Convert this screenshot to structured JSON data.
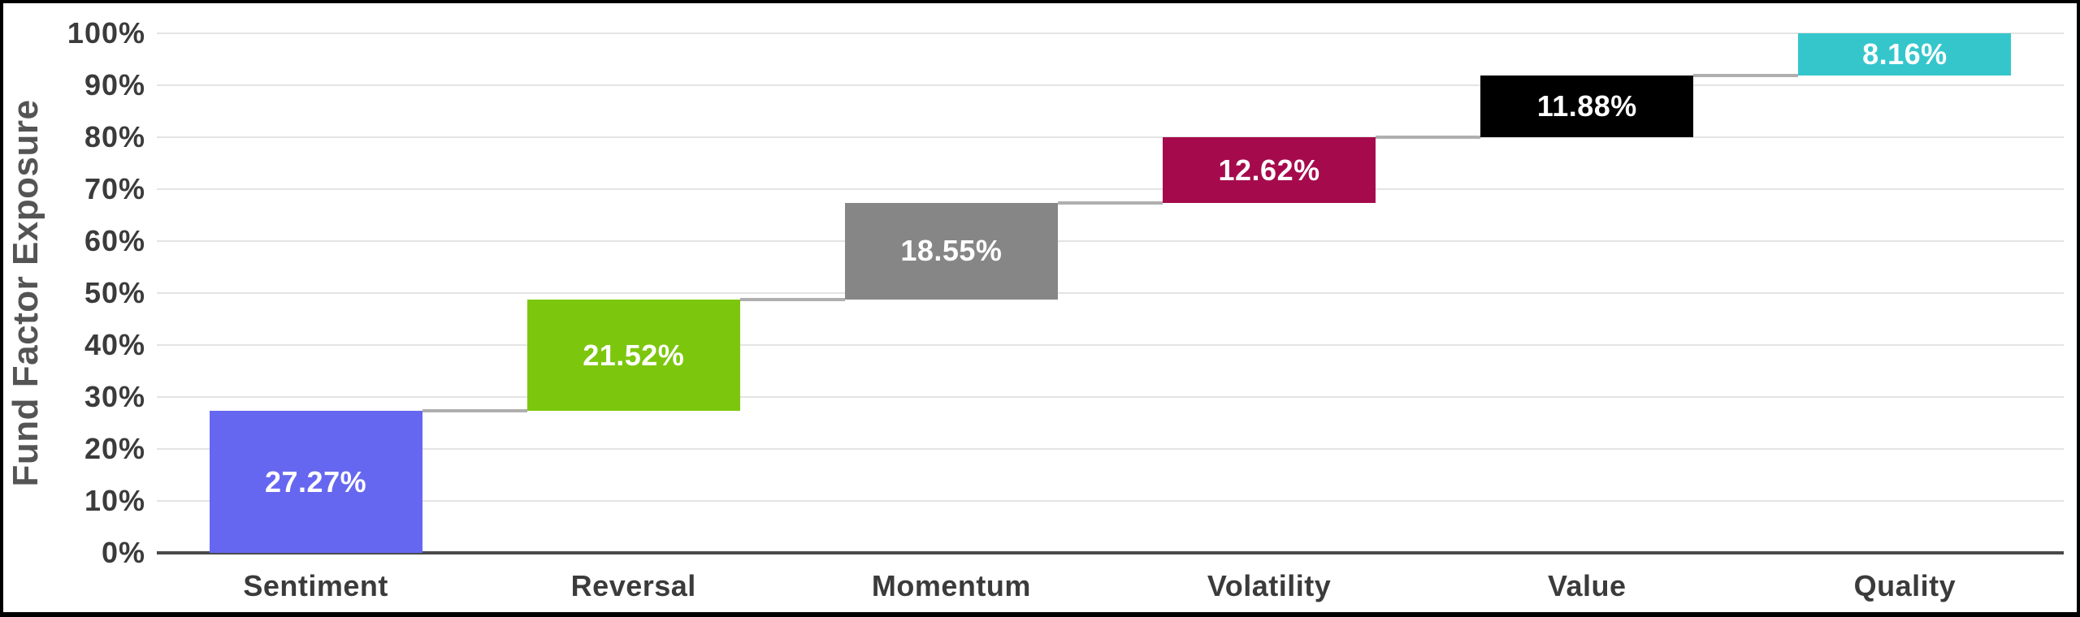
{
  "chart_data": {
    "type": "bar",
    "variant": "waterfall",
    "title": "",
    "xlabel": "",
    "ylabel": "Fund Factor Exposure",
    "categories": [
      "Sentiment",
      "Reversal",
      "Momentum",
      "Volatility",
      "Value",
      "Quality"
    ],
    "values": [
      27.27,
      21.52,
      18.55,
      12.62,
      11.88,
      8.16
    ],
    "value_labels": [
      "27.27%",
      "21.52%",
      "18.55%",
      "12.62%",
      "11.88%",
      "8.16%"
    ],
    "cumulative_ranges": [
      [
        0,
        27.27
      ],
      [
        27.27,
        48.79
      ],
      [
        48.79,
        67.34
      ],
      [
        67.34,
        79.96
      ],
      [
        79.96,
        91.84
      ],
      [
        91.84,
        100
      ]
    ],
    "bar_colors": [
      "#6667F0",
      "#7CC70E",
      "#868686",
      "#A50B4C",
      "#000000",
      "#35C6CC"
    ],
    "ylim": [
      0,
      100
    ],
    "yticks": [
      "0%",
      "10%",
      "20%",
      "30%",
      "40%",
      "50%",
      "60%",
      "70%",
      "80%",
      "90%",
      "100%"
    ],
    "ytick_values": [
      0,
      10,
      20,
      30,
      40,
      50,
      60,
      70,
      80,
      90,
      100
    ],
    "grid": true,
    "legend": "none"
  },
  "styles": {
    "background": "#FFFFFF",
    "frame_border_color": "#000000",
    "grid_color": "#E4E4E4",
    "axis_line_color": "#4A4A4A",
    "connector_color": "#AFAFAF",
    "bar_value_label_color": "#FFFFFF",
    "tick_label_color": "#3B3B3B",
    "category_label_color": "#3B3B3B",
    "y_axis_title_color": "#545454"
  }
}
